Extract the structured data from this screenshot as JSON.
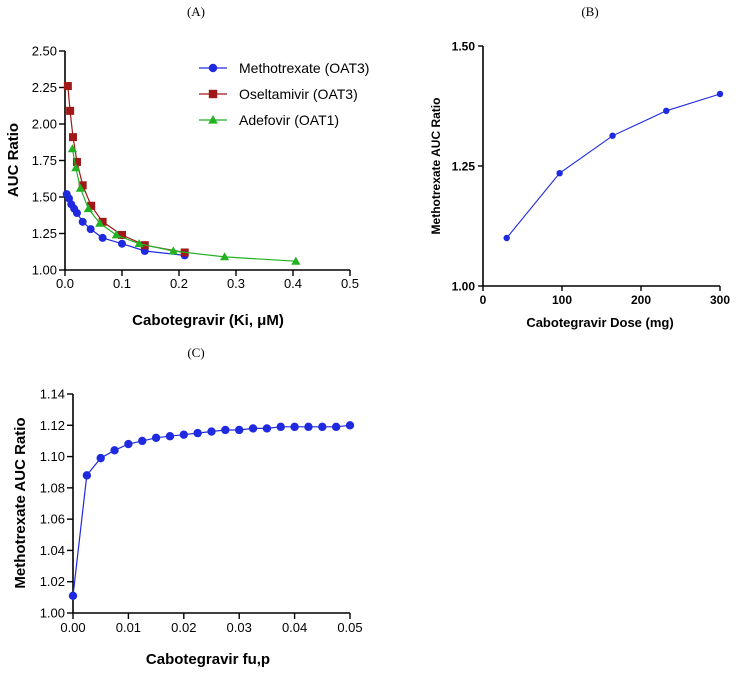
{
  "panels": {
    "a": {
      "label": "(A)"
    },
    "b": {
      "label": "(B)"
    },
    "c": {
      "label": "(C)"
    }
  },
  "chart_data": [
    {
      "id": "A",
      "type": "line",
      "title": "",
      "xlabel": "Cabotegravir (Ki, μM)",
      "ylabel": "AUC Ratio",
      "xlim": [
        0,
        0.5
      ],
      "ylim": [
        1.0,
        2.5
      ],
      "xticks": [
        0,
        0.1,
        0.2,
        0.3,
        0.4,
        0.5
      ],
      "xtick_labels": [
        "0.0",
        "0.1",
        "0.2",
        "0.3",
        "0.4",
        "0.5"
      ],
      "yticks": [
        1.0,
        1.25,
        1.5,
        1.75,
        2.0,
        2.25,
        2.5
      ],
      "ytick_labels": [
        "1.00",
        "1.25",
        "1.50",
        "1.75",
        "2.00",
        "2.25",
        "2.50"
      ],
      "legend_position": "top-right",
      "series": [
        {
          "name": "Methotrexate (OAT3)",
          "color": "#1f2ae0",
          "marker": "circle",
          "x": [
            0.003,
            0.007,
            0.011,
            0.016,
            0.021,
            0.031,
            0.045,
            0.066,
            0.1,
            0.14,
            0.21
          ],
          "y": [
            1.52,
            1.49,
            1.45,
            1.42,
            1.39,
            1.33,
            1.28,
            1.22,
            1.18,
            1.13,
            1.1
          ]
        },
        {
          "name": "Oseltamivir (OAT3)",
          "color": "#a01818",
          "marker": "square",
          "x": [
            0.005,
            0.009,
            0.014,
            0.021,
            0.031,
            0.046,
            0.066,
            0.1,
            0.14,
            0.21
          ],
          "y": [
            2.26,
            2.09,
            1.91,
            1.74,
            1.58,
            1.44,
            1.33,
            1.24,
            1.17,
            1.12
          ]
        },
        {
          "name": "Adefovir (OAT1)",
          "color": "#22b222",
          "marker": "triangle",
          "x": [
            0.013,
            0.019,
            0.027,
            0.041,
            0.061,
            0.09,
            0.13,
            0.19,
            0.28,
            0.405
          ],
          "y": [
            1.83,
            1.7,
            1.56,
            1.42,
            1.32,
            1.24,
            1.18,
            1.13,
            1.09,
            1.06
          ]
        }
      ]
    },
    {
      "id": "B",
      "type": "line",
      "title": "",
      "xlabel": "Cabotegravir Dose (mg)",
      "ylabel": "Methotrexate AUC Ratio",
      "xlim": [
        0,
        300
      ],
      "ylim": [
        1.0,
        1.5
      ],
      "xticks": [
        0,
        100,
        200,
        300
      ],
      "xtick_labels": [
        "0",
        "100",
        "200",
        "300"
      ],
      "yticks": [
        1.0,
        1.25,
        1.5
      ],
      "ytick_labels": [
        "1.00",
        "1.25",
        "1.50"
      ],
      "series": [
        {
          "name": "Methotrexate",
          "color": "#1f2ae0",
          "marker": "circle",
          "x": [
            30,
            97,
            164,
            232,
            300
          ],
          "y": [
            1.1,
            1.235,
            1.313,
            1.365,
            1.4
          ]
        }
      ]
    },
    {
      "id": "C",
      "type": "line",
      "title": "",
      "xlabel": "Cabotegravir fu,p",
      "ylabel": "Methotrexate AUC Ratio",
      "xlim": [
        0,
        0.05
      ],
      "ylim": [
        1.0,
        1.14
      ],
      "xticks": [
        0,
        0.01,
        0.02,
        0.03,
        0.04,
        0.05
      ],
      "xtick_labels": [
        "0.00",
        "0.01",
        "0.02",
        "0.03",
        "0.04",
        "0.05"
      ],
      "yticks": [
        1.0,
        1.02,
        1.04,
        1.06,
        1.08,
        1.1,
        1.12,
        1.14
      ],
      "ytick_labels": [
        "1.00",
        "1.02",
        "1.04",
        "1.06",
        "1.08",
        "1.10",
        "1.12",
        "1.14"
      ],
      "series": [
        {
          "name": "Methotrexate",
          "color": "#1f2ae0",
          "marker": "circle",
          "x": [
            0.0,
            0.0025,
            0.005,
            0.0075,
            0.01,
            0.0125,
            0.015,
            0.0175,
            0.02,
            0.0225,
            0.025,
            0.0275,
            0.03,
            0.0325,
            0.035,
            0.0375,
            0.04,
            0.0425,
            0.045,
            0.0475,
            0.05
          ],
          "y": [
            1.011,
            1.088,
            1.099,
            1.104,
            1.108,
            1.11,
            1.112,
            1.113,
            1.114,
            1.115,
            1.116,
            1.117,
            1.117,
            1.118,
            1.118,
            1.119,
            1.119,
            1.119,
            1.119,
            1.119,
            1.12
          ]
        }
      ]
    }
  ]
}
